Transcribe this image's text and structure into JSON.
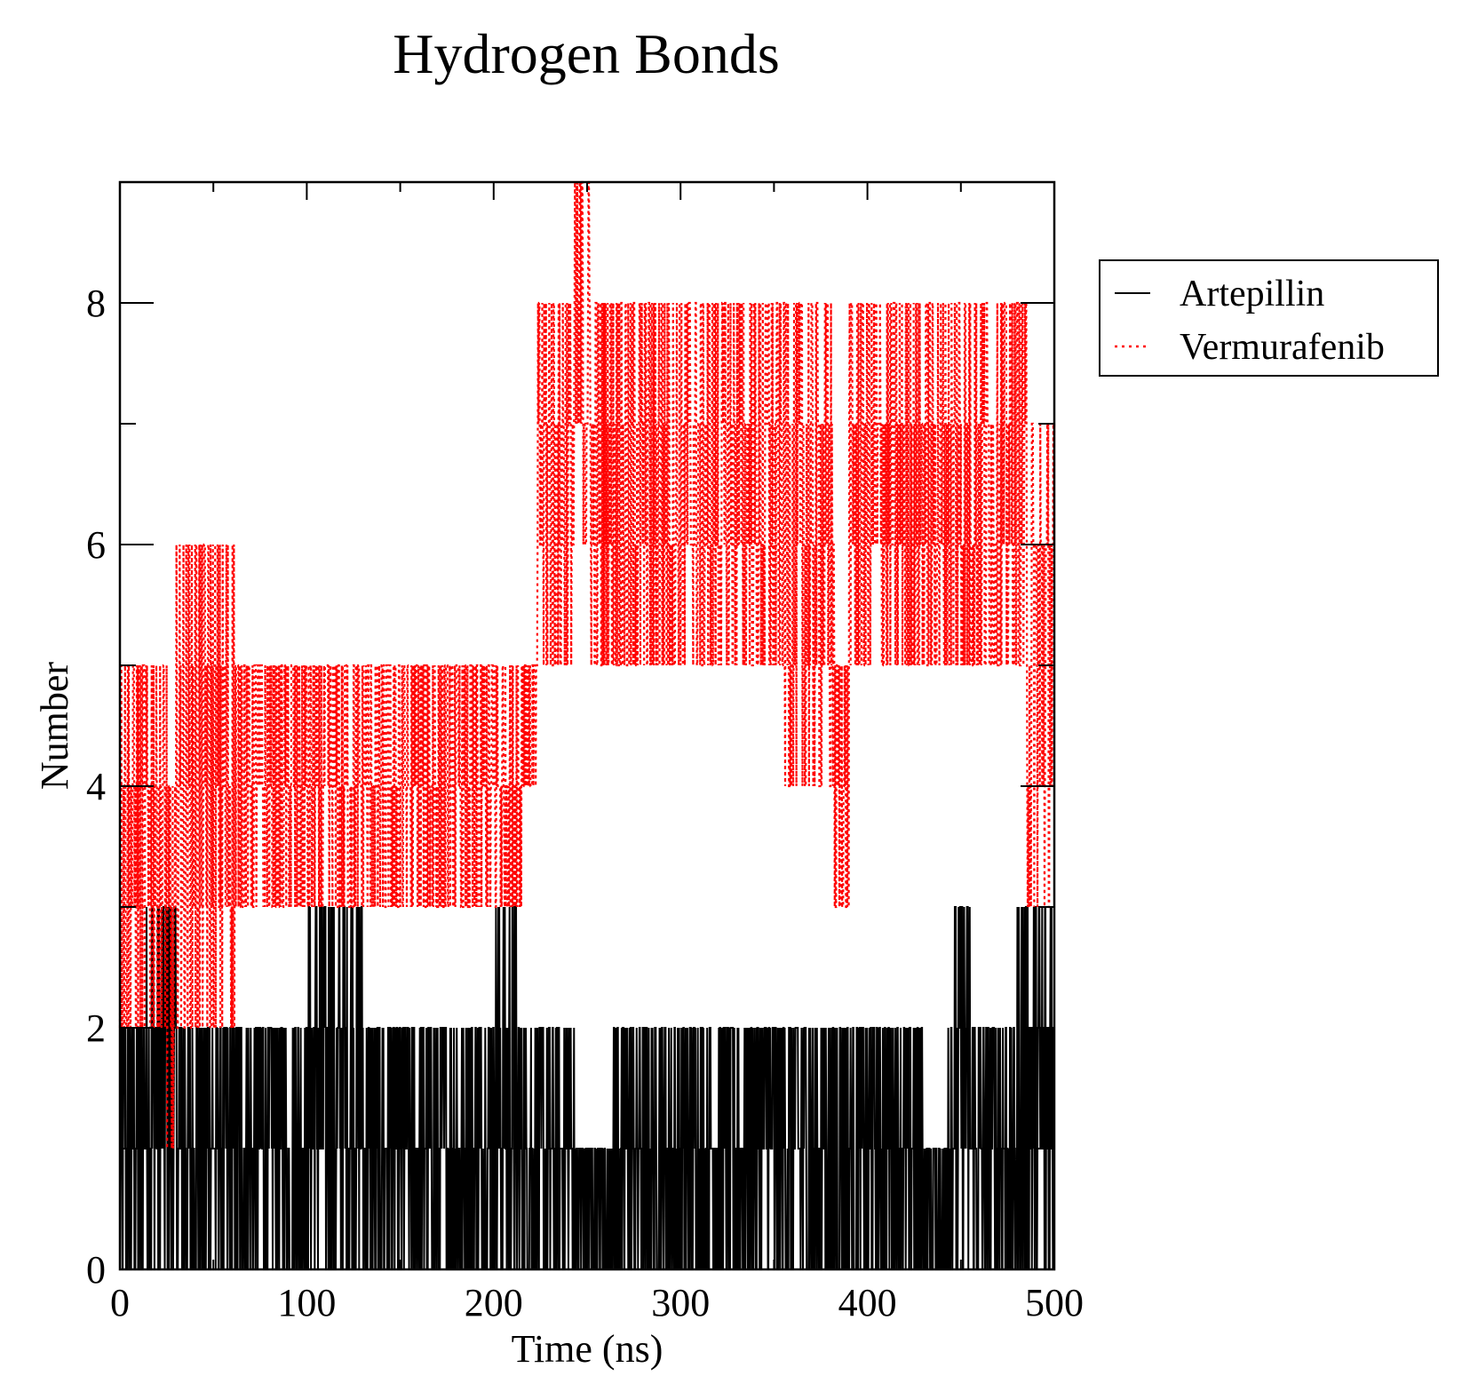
{
  "chart_data": {
    "type": "line",
    "title": "Hydrogen Bonds",
    "xlabel": "Time (ns)",
    "ylabel": "Number",
    "xlim": [
      0,
      500
    ],
    "ylim": [
      0,
      9
    ],
    "xticks": [
      0,
      100,
      200,
      300,
      400,
      500
    ],
    "xtick_labels": [
      "0",
      "100",
      "200",
      "300",
      "400",
      "500"
    ],
    "yticks": [
      0,
      2,
      4,
      6,
      8
    ],
    "ytick_labels": [
      "0",
      "2",
      "4",
      "6",
      "8"
    ],
    "grid": false,
    "legend_position": "outside-right-top",
    "series": [
      {
        "name": "Artepillin",
        "color": "#000000",
        "style": "solid",
        "segments": [
          {
            "t": [
              0,
              12
            ],
            "min": 0,
            "max": 2
          },
          {
            "t": [
              12,
              30
            ],
            "min": 0,
            "max": 3
          },
          {
            "t": [
              30,
              65
            ],
            "min": 0,
            "max": 2
          },
          {
            "t": [
              65,
              100
            ],
            "min": 0,
            "max": 2
          },
          {
            "t": [
              100,
              130
            ],
            "min": 0,
            "max": 3
          },
          {
            "t": [
              130,
              200
            ],
            "min": 0,
            "max": 2
          },
          {
            "t": [
              200,
              212
            ],
            "min": 0,
            "max": 3
          },
          {
            "t": [
              212,
              243
            ],
            "min": 0,
            "max": 2
          },
          {
            "t": [
              243,
              262
            ],
            "min": 0,
            "max": 1
          },
          {
            "t": [
              262,
              300
            ],
            "min": 0,
            "max": 2
          },
          {
            "t": [
              300,
              330
            ],
            "min": 0,
            "max": 2
          },
          {
            "t": [
              330,
              390
            ],
            "min": 0,
            "max": 2
          },
          {
            "t": [
              390,
              430
            ],
            "min": 0,
            "max": 2
          },
          {
            "t": [
              430,
              443
            ],
            "min": 0,
            "max": 1
          },
          {
            "t": [
              443,
              455
            ],
            "min": 0,
            "max": 3
          },
          {
            "t": [
              455,
              480
            ],
            "min": 0,
            "max": 2
          },
          {
            "t": [
              480,
              500
            ],
            "min": 0,
            "max": 3
          }
        ]
      },
      {
        "name": "Vermurafenib",
        "color": "#ff0000",
        "style": "dotted",
        "segments": [
          {
            "t": [
              0,
              25
            ],
            "min": 2,
            "max": 5
          },
          {
            "t": [
              25,
              30
            ],
            "min": 1,
            "max": 4
          },
          {
            "t": [
              30,
              62
            ],
            "min": 2,
            "max": 6
          },
          {
            "t": [
              62,
              130
            ],
            "min": 3,
            "max": 5
          },
          {
            "t": [
              130,
              215
            ],
            "min": 3,
            "max": 5
          },
          {
            "t": [
              215,
              223
            ],
            "min": 4,
            "max": 5
          },
          {
            "t": [
              223,
              243
            ],
            "min": 5,
            "max": 8
          },
          {
            "t": [
              243,
              252
            ],
            "min": 6,
            "max": 9
          },
          {
            "t": [
              252,
              355
            ],
            "min": 5,
            "max": 8
          },
          {
            "t": [
              355,
              382
            ],
            "min": 4,
            "max": 8
          },
          {
            "t": [
              382,
              390
            ],
            "min": 3,
            "max": 5
          },
          {
            "t": [
              390,
              470
            ],
            "min": 5,
            "max": 8
          },
          {
            "t": [
              470,
              485
            ],
            "min": 5,
            "max": 8
          },
          {
            "t": [
              485,
              500
            ],
            "min": 3,
            "max": 7
          }
        ]
      }
    ]
  }
}
